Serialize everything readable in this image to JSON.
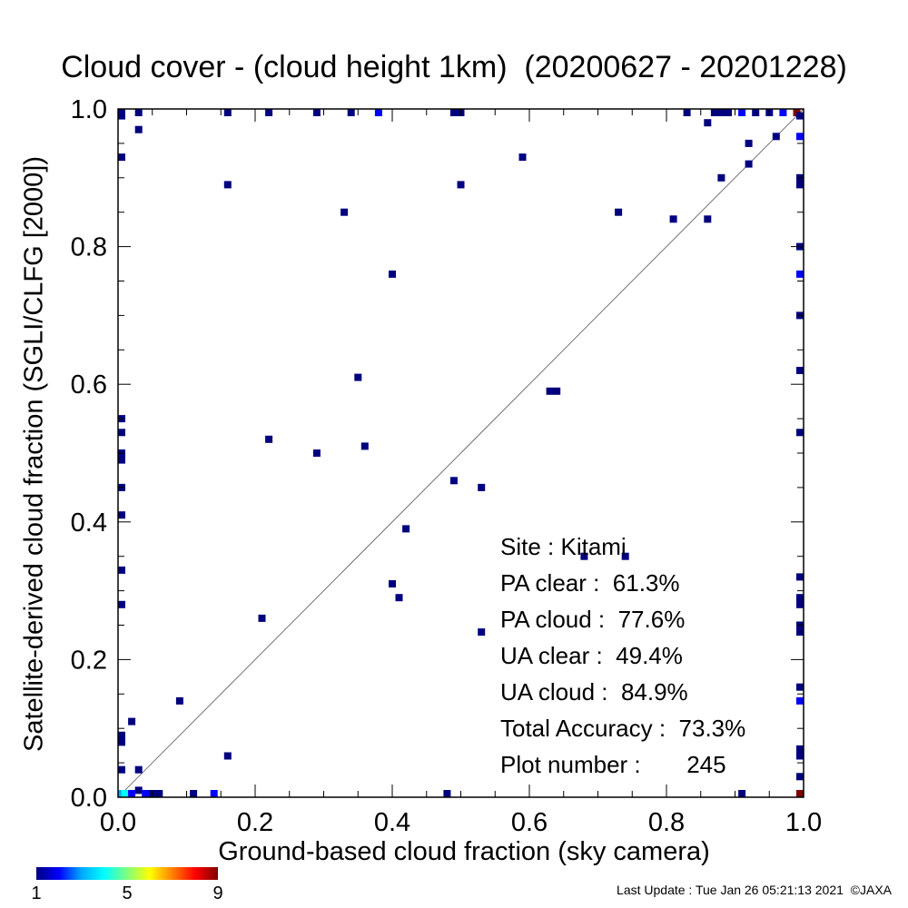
{
  "chart_data": {
    "type": "scatter",
    "title": "Cloud cover - (cloud height 1km)  (20200627 - 20201228)",
    "xlabel": "Ground-based cloud fraction (sky camera)",
    "ylabel": "Satellite-derived cloud fraction (SGLI/CLFG [2000])",
    "xlim": [
      0,
      1
    ],
    "ylim": [
      0,
      1
    ],
    "xticks": [
      "0.0",
      "0.2",
      "0.4",
      "0.6",
      "0.8",
      "1.0"
    ],
    "yticks": [
      "0.0",
      "0.2",
      "0.4",
      "0.6",
      "0.8",
      "1.0"
    ],
    "grid": false,
    "reference_line": "y = x",
    "colorscale": {
      "min": 1,
      "max": 9,
      "ticks": [
        "1",
        "5",
        "9"
      ]
    },
    "points": [
      {
        "x": 0.16,
        "y": 0.89,
        "count": 1
      },
      {
        "x": 0.33,
        "y": 0.85,
        "count": 1
      },
      {
        "x": 0.4,
        "y": 0.76,
        "count": 1
      },
      {
        "x": 0.5,
        "y": 0.89,
        "count": 1
      },
      {
        "x": 0.59,
        "y": 0.93,
        "count": 1
      },
      {
        "x": 0.73,
        "y": 0.85,
        "count": 1
      },
      {
        "x": 0.81,
        "y": 0.84,
        "count": 1
      },
      {
        "x": 0.86,
        "y": 0.84,
        "count": 1
      },
      {
        "x": 0.88,
        "y": 0.9,
        "count": 1
      },
      {
        "x": 0.92,
        "y": 0.92,
        "count": 1
      },
      {
        "x": 0.92,
        "y": 0.95,
        "count": 1
      },
      {
        "x": 0.96,
        "y": 0.96,
        "count": 1
      },
      {
        "x": 0.86,
        "y": 0.98,
        "count": 1
      },
      {
        "x": 0.03,
        "y": 0.97,
        "count": 1
      },
      {
        "x": 0.35,
        "y": 0.61,
        "count": 1
      },
      {
        "x": 0.63,
        "y": 0.59,
        "count": 1
      },
      {
        "x": 0.64,
        "y": 0.59,
        "count": 1
      },
      {
        "x": 0.22,
        "y": 0.52,
        "count": 1
      },
      {
        "x": 0.29,
        "y": 0.5,
        "count": 1
      },
      {
        "x": 0.36,
        "y": 0.51,
        "count": 1
      },
      {
        "x": 0.49,
        "y": 0.46,
        "count": 1
      },
      {
        "x": 0.53,
        "y": 0.45,
        "count": 1
      },
      {
        "x": 0.42,
        "y": 0.39,
        "count": 1
      },
      {
        "x": 0.68,
        "y": 0.35,
        "count": 1
      },
      {
        "x": 0.74,
        "y": 0.35,
        "count": 1
      },
      {
        "x": 0.4,
        "y": 0.31,
        "count": 1
      },
      {
        "x": 0.41,
        "y": 0.29,
        "count": 1
      },
      {
        "x": 0.21,
        "y": 0.26,
        "count": 1
      },
      {
        "x": 0.53,
        "y": 0.24,
        "count": 1
      },
      {
        "x": 0.09,
        "y": 0.14,
        "count": 1
      },
      {
        "x": 0.02,
        "y": 0.11,
        "count": 1
      },
      {
        "x": 0.16,
        "y": 0.06,
        "count": 1
      },
      {
        "x": 0.03,
        "y": 0.04,
        "count": 1
      },
      {
        "x": 0.03,
        "y": 0.01,
        "count": 1
      },
      {
        "x": 0.11,
        "y": 0.0,
        "count": 1
      },
      {
        "x": 0.14,
        "y": 0.0,
        "count": 2
      },
      {
        "x": 0.48,
        "y": 0.0,
        "count": 1
      },
      {
        "x": 0.91,
        "y": 0.0,
        "count": 1
      },
      {
        "x": 0.0,
        "y": 0.0,
        "count": 3
      },
      {
        "x": 0.01,
        "y": 0.0,
        "count": 4
      },
      {
        "x": 0.02,
        "y": 0.0,
        "count": 2
      },
      {
        "x": 0.04,
        "y": 0.0,
        "count": 2
      },
      {
        "x": 0.05,
        "y": 0.0,
        "count": 1
      },
      {
        "x": 0.06,
        "y": 0.0,
        "count": 1
      },
      {
        "x": 0.0,
        "y": 0.09,
        "count": 1
      },
      {
        "x": 0.0,
        "y": 0.08,
        "count": 1
      },
      {
        "x": 0.0,
        "y": 0.04,
        "count": 1
      },
      {
        "x": 0.0,
        "y": 0.28,
        "count": 1
      },
      {
        "x": 0.0,
        "y": 0.33,
        "count": 1
      },
      {
        "x": 0.0,
        "y": 0.41,
        "count": 1
      },
      {
        "x": 0.0,
        "y": 0.45,
        "count": 1
      },
      {
        "x": 0.0,
        "y": 0.49,
        "count": 1
      },
      {
        "x": 0.0,
        "y": 0.5,
        "count": 1
      },
      {
        "x": 0.0,
        "y": 0.53,
        "count": 1
      },
      {
        "x": 0.0,
        "y": 0.55,
        "count": 1
      },
      {
        "x": 0.0,
        "y": 0.93,
        "count": 1
      },
      {
        "x": 0.0,
        "y": 0.99,
        "count": 1
      },
      {
        "x": 0.0,
        "y": 1.0,
        "count": 1
      },
      {
        "x": 0.03,
        "y": 1.0,
        "count": 1
      },
      {
        "x": 0.16,
        "y": 1.0,
        "count": 1
      },
      {
        "x": 0.22,
        "y": 1.0,
        "count": 1
      },
      {
        "x": 0.29,
        "y": 1.0,
        "count": 1
      },
      {
        "x": 0.34,
        "y": 1.0,
        "count": 1
      },
      {
        "x": 0.38,
        "y": 1.0,
        "count": 2
      },
      {
        "x": 0.49,
        "y": 1.0,
        "count": 1
      },
      {
        "x": 0.5,
        "y": 1.0,
        "count": 1
      },
      {
        "x": 0.83,
        "y": 1.0,
        "count": 1
      },
      {
        "x": 0.87,
        "y": 1.0,
        "count": 1
      },
      {
        "x": 0.88,
        "y": 1.0,
        "count": 1
      },
      {
        "x": 0.89,
        "y": 1.0,
        "count": 1
      },
      {
        "x": 0.91,
        "y": 1.0,
        "count": 2
      },
      {
        "x": 0.93,
        "y": 1.0,
        "count": 1
      },
      {
        "x": 0.95,
        "y": 1.0,
        "count": 1
      },
      {
        "x": 0.97,
        "y": 1.0,
        "count": 2
      },
      {
        "x": 0.99,
        "y": 1.0,
        "count": 9
      },
      {
        "x": 1.0,
        "y": 0.99,
        "count": 1
      },
      {
        "x": 1.0,
        "y": 0.96,
        "count": 2
      },
      {
        "x": 1.0,
        "y": 0.9,
        "count": 1
      },
      {
        "x": 1.0,
        "y": 0.89,
        "count": 1
      },
      {
        "x": 1.0,
        "y": 0.8,
        "count": 1
      },
      {
        "x": 1.0,
        "y": 0.76,
        "count": 2
      },
      {
        "x": 1.0,
        "y": 0.7,
        "count": 1
      },
      {
        "x": 1.0,
        "y": 0.62,
        "count": 1
      },
      {
        "x": 1.0,
        "y": 0.53,
        "count": 1
      },
      {
        "x": 1.0,
        "y": 0.32,
        "count": 1
      },
      {
        "x": 1.0,
        "y": 0.29,
        "count": 1
      },
      {
        "x": 1.0,
        "y": 0.28,
        "count": 1
      },
      {
        "x": 1.0,
        "y": 0.25,
        "count": 1
      },
      {
        "x": 1.0,
        "y": 0.24,
        "count": 1
      },
      {
        "x": 1.0,
        "y": 0.16,
        "count": 1
      },
      {
        "x": 1.0,
        "y": 0.14,
        "count": 2
      },
      {
        "x": 1.0,
        "y": 0.07,
        "count": 1
      },
      {
        "x": 1.0,
        "y": 0.06,
        "count": 1
      },
      {
        "x": 1.0,
        "y": 0.03,
        "count": 1
      },
      {
        "x": 1.0,
        "y": 0.0,
        "count": 9
      }
    ]
  },
  "stats": {
    "site": "Site : Kitami",
    "pa_clear": "PA clear :  61.3%",
    "pa_cloud": "PA cloud :  77.6%",
    "ua_clear": "UA clear :  49.4%",
    "ua_cloud": "UA cloud :  84.9%",
    "total_accuracy": "Total Accuracy :  73.3%",
    "plot_number": "Plot number :       245"
  },
  "footer": "Last Update : Tue Jan 26 05:21:13 2021  ©JAXA",
  "colors": {
    "point_low": "#00007f",
    "point_high": "#7f0000",
    "reference_line": "#555555"
  }
}
